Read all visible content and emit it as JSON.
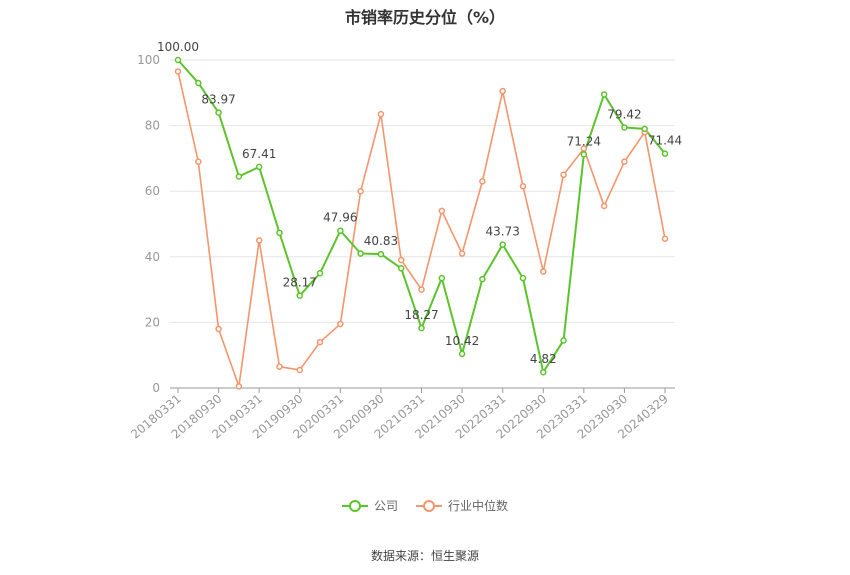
{
  "chart_data": {
    "type": "line",
    "title": "市销率历史分位（%）",
    "ylim": [
      0,
      100
    ],
    "yticks": [
      0,
      20,
      40,
      60,
      80,
      100
    ],
    "x": [
      "20180331",
      "20180630",
      "20180930",
      "20181231",
      "20190331",
      "20190630",
      "20190930",
      "20191231",
      "20200331",
      "20200630",
      "20200930",
      "20201231",
      "20210331",
      "20210630",
      "20210930",
      "20211231",
      "20220331",
      "20220630",
      "20220930",
      "20221231",
      "20230331",
      "20230630",
      "20230930",
      "20231231",
      "20240329"
    ],
    "x_tick_labels": [
      "20180331",
      "20180930",
      "20190331",
      "20190930",
      "20200331",
      "20200930",
      "20210331",
      "20210930",
      "20220331",
      "20220930",
      "20230331",
      "20230930",
      "20240329"
    ],
    "grid": true,
    "legend_position": "bottom",
    "series": [
      {
        "name": "公司",
        "color": "#5cc42b",
        "values": [
          100.0,
          93.0,
          83.97,
          64.5,
          67.41,
          47.3,
          28.17,
          35.0,
          47.96,
          41.0,
          40.83,
          36.5,
          18.27,
          33.5,
          10.42,
          33.2,
          43.73,
          33.5,
          4.82,
          14.5,
          71.24,
          89.5,
          79.42,
          79.0,
          71.44
        ],
        "labels": [
          "100.00",
          "",
          "83.97",
          "",
          "67.41",
          "",
          "28.17",
          "",
          "47.96",
          "",
          "40.83",
          "",
          "18.27",
          "",
          "10.42",
          "",
          "43.73",
          "",
          "4.82",
          "",
          "71.24",
          "",
          "79.42",
          "",
          "71.44"
        ]
      },
      {
        "name": "行业中位数",
        "color": "#f5956b",
        "values": [
          96.5,
          69.0,
          18.0,
          0.5,
          45.0,
          6.5,
          5.5,
          14.0,
          19.5,
          60.0,
          83.5,
          39.0,
          30.0,
          54.0,
          41.0,
          63.0,
          90.5,
          61.5,
          35.5,
          65.0,
          73.0,
          55.5,
          69.0,
          78.0,
          45.5
        ]
      }
    ]
  },
  "legend": {
    "items": [
      {
        "label": "公司",
        "color": "#5cc42b"
      },
      {
        "label": "行业中位数",
        "color": "#f5956b"
      }
    ]
  },
  "source": "数据来源：恒生聚源"
}
